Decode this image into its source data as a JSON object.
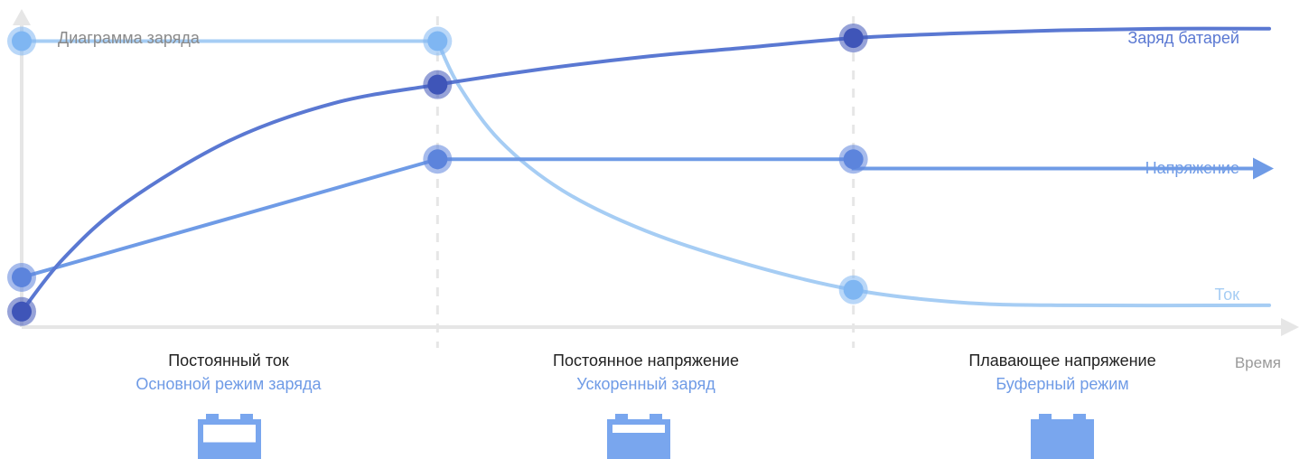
{
  "title": "Диаграмма заряда",
  "xlabel": "Время",
  "colors": {
    "charge": "#5a78d2",
    "charge_dot": "#3f55b8",
    "voltage": "#6f9be6",
    "voltage_dot": "#5c84dc",
    "current": "#a6cdf4",
    "current_dot": "#7fb6f2",
    "axis": "#e6e6e6",
    "stage_sub": "#6f9be6",
    "battery": "#79a6ee"
  },
  "stages": [
    {
      "title": "Постоянный ток",
      "subtitle": "Основной режим заряда",
      "battery_fill": 0.35
    },
    {
      "title": "Постоянное напряжение",
      "subtitle": "Ускоренный заряд",
      "battery_fill": 0.7
    },
    {
      "title": "Плавающее напряжение",
      "subtitle": "Буферный режим",
      "battery_fill": 1.0
    }
  ],
  "chart_data": {
    "type": "line",
    "title": "Диаграмма заряда",
    "xlabel": "Время",
    "ylabel": "",
    "xlim": [
      0,
      3
    ],
    "ylim": [
      0,
      1
    ],
    "stage_boundaries": [
      1,
      2
    ],
    "grid": false,
    "series": [
      {
        "name": "Заряд батарей",
        "key": "charge",
        "x": [
          0,
          0.1,
          0.25,
          0.5,
          0.75,
          1,
          1.25,
          1.5,
          1.75,
          2,
          2.25,
          2.5,
          2.75,
          3
        ],
        "y": [
          0.05,
          0.22,
          0.4,
          0.6,
          0.72,
          0.78,
          0.83,
          0.87,
          0.9,
          0.93,
          0.945,
          0.955,
          0.96,
          0.96
        ],
        "markers_x": [
          0,
          1,
          2
        ]
      },
      {
        "name": "Напряжение",
        "key": "voltage",
        "x": [
          0,
          1,
          2,
          2,
          3
        ],
        "y": [
          0.16,
          0.54,
          0.54,
          0.51,
          0.51
        ],
        "markers_x": [
          0,
          1,
          2
        ]
      },
      {
        "name": "Ток",
        "key": "current",
        "x": [
          0,
          1,
          1.05,
          1.15,
          1.3,
          1.5,
          1.75,
          2,
          2.25,
          2.5,
          3
        ],
        "y": [
          0.92,
          0.92,
          0.78,
          0.6,
          0.44,
          0.31,
          0.2,
          0.12,
          0.08,
          0.07,
          0.07
        ],
        "markers_x": [
          0,
          1,
          2
        ]
      }
    ]
  }
}
